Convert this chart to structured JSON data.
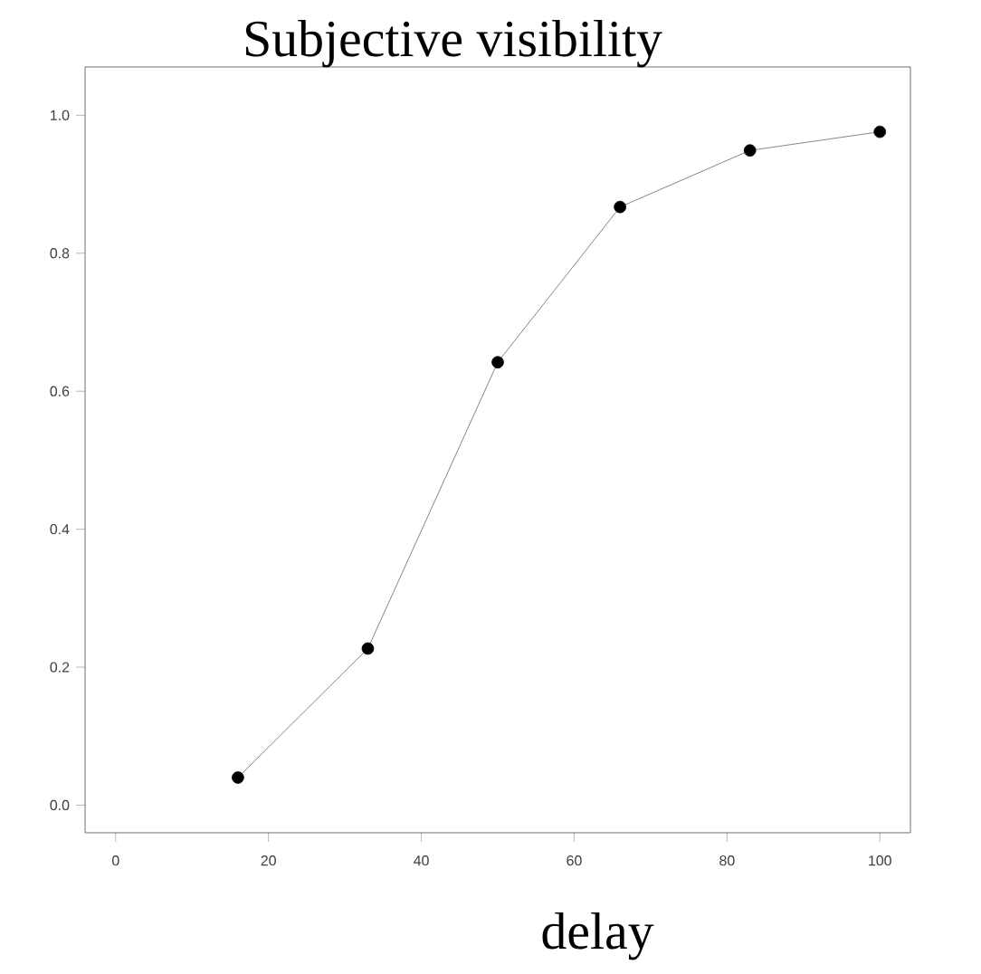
{
  "chart_data": {
    "type": "line",
    "title": "Subjective visibility",
    "xlabel": "delay",
    "x": [
      16,
      33,
      50,
      66,
      83,
      100
    ],
    "series": [
      {
        "color": "#000000",
        "values": [
          0.04,
          0.227,
          0.642,
          0.867,
          0.949,
          0.976
        ]
      }
    ],
    "xlim": [
      -4,
      104
    ],
    "ylim": [
      -0.04,
      1.07
    ],
    "xticks": [
      0,
      20,
      40,
      60,
      80,
      100
    ],
    "yticks": [
      {
        "value": 0,
        "label": "0.0"
      },
      {
        "value": 0.2,
        "label": "0.2"
      },
      {
        "value": 0.4,
        "label": "0.4"
      },
      {
        "value": 0.6,
        "label": "0.6"
      },
      {
        "value": 0.8,
        "label": "0.8"
      },
      {
        "value": 1,
        "label": "1.0"
      }
    ],
    "marker": "circle",
    "line_style": "solid"
  }
}
